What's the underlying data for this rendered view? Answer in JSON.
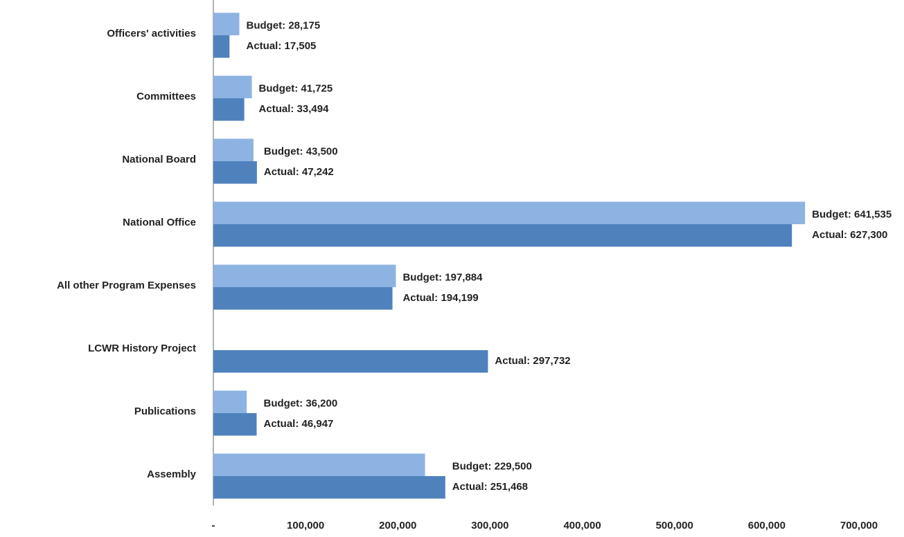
{
  "chart_data": {
    "type": "bar",
    "orientation": "horizontal",
    "categories": [
      "Officers' activities",
      "Committees",
      "National Board",
      "National Office",
      "All other Program Expenses",
      "LCWR History Project",
      "Publications",
      "Assembly"
    ],
    "series": [
      {
        "color": "#8db3e2",
        "values": [
          28175,
          41725,
          43500,
          641535,
          197884,
          null,
          36200,
          229500
        ],
        "value_labels": [
          "Budget:  28,175",
          "Budget:  41,725",
          "Budget:  43,500",
          "Budget:  641,535",
          "Budget:  197,884",
          null,
          "Budget: 36,200",
          "Budget: 229,500"
        ]
      },
      {
        "color": "#4f81bd",
        "values": [
          17505,
          33494,
          47242,
          627300,
          194199,
          297732,
          46947,
          251468
        ],
        "value_labels": [
          "Actual:  17,505",
          "Actual:   33,494",
          "Actual:   47,242",
          "Actual:   627,300",
          "Actual:    194,199",
          "Actual: 297,732",
          "Actual:  46,947",
          "Actual:  251,468"
        ]
      }
    ],
    "xlim": [
      0,
      700000
    ],
    "xticks": [
      {
        "value": 0,
        "label": "-"
      },
      {
        "value": 100000,
        "label": "100,000"
      },
      {
        "value": 200000,
        "label": "200,000"
      },
      {
        "value": 300000,
        "label": "300,000"
      },
      {
        "value": 400000,
        "label": "400,000"
      },
      {
        "value": 500000,
        "label": "500,000"
      },
      {
        "value": 600000,
        "label": "600,000"
      },
      {
        "value": 700000,
        "label": "700,000"
      }
    ]
  }
}
